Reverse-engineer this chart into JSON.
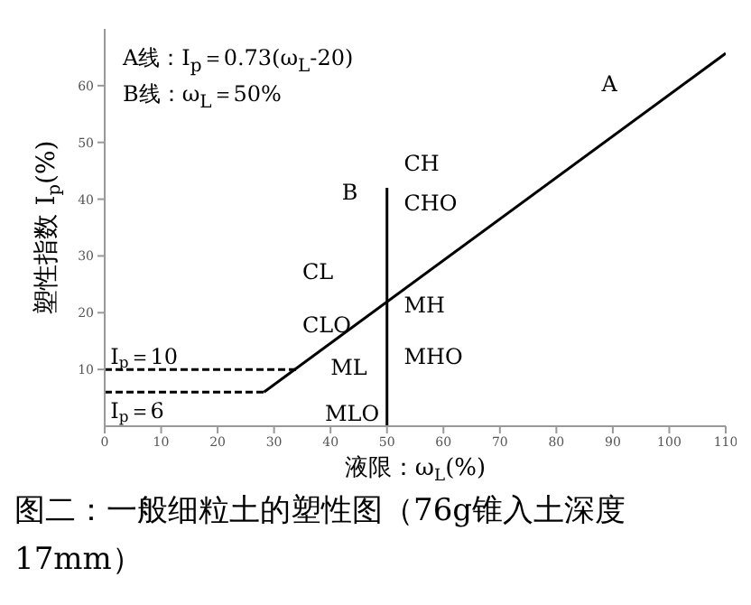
{
  "chart_data": {
    "type": "line",
    "title": "图二：一般细粒土的塑性图（76g锥入土深度17mm）",
    "xlabel": "液限：ω$_{L}$(%)",
    "ylabel": "塑性指数 I$_{p}$(%)",
    "xlim": [
      0,
      110
    ],
    "ylim": [
      0,
      70
    ],
    "xticks": [
      0,
      10,
      20,
      30,
      40,
      50,
      60,
      70,
      80,
      90,
      100,
      110
    ],
    "yticks": [
      10,
      20,
      30,
      40,
      50,
      60
    ],
    "marker": "none",
    "series": [
      {
        "type": "line",
        "color": "#000000",
        "line_style": "solid",
        "x": [
          28.2,
          110
        ],
        "values": [
          6,
          65.7
        ]
      },
      {
        "type": "line",
        "color": "#000000",
        "line_style": "solid",
        "x": [
          50,
          50
        ],
        "values": [
          0,
          42
        ]
      },
      {
        "type": "line",
        "color": "#000000",
        "line_style": "dashed",
        "x": [
          0,
          34
        ],
        "values": [
          10,
          10
        ]
      },
      {
        "type": "line",
        "color": "#000000",
        "line_style": "dashed",
        "x": [
          0,
          28.2
        ],
        "values": [
          6,
          6
        ]
      }
    ],
    "annotations": [
      "A线：I$_{p}$＝0.73(ω$_{L}$-20)",
      "B线：ω$_{L}$＝50%",
      "A",
      "B",
      "CH",
      "CHO",
      "CL",
      "CLO",
      "ML",
      "MLO",
      "MH",
      "MHO",
      "I$_{p}$＝10",
      "I$_{p}$＝6"
    ]
  }
}
